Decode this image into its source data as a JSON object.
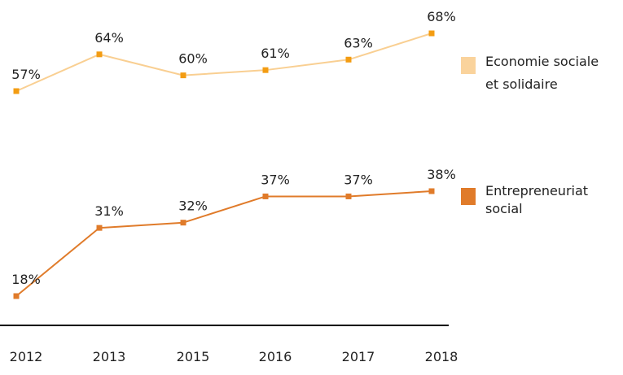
{
  "chart_data": {
    "type": "line",
    "title": "",
    "xlabel": "",
    "ylabel": "",
    "categories": [
      "2012",
      "2013",
      "2015",
      "2016",
      "2017",
      "2018"
    ],
    "series": [
      {
        "name": "Economie sociale et solidaire",
        "name_lines": [
          "Economie sociale",
          "et solidaire"
        ],
        "values": [
          57,
          64,
          60,
          61,
          63,
          68
        ],
        "labels": [
          "57%",
          "64%",
          "60%",
          "61%",
          "63%",
          "68%"
        ],
        "line_color": "#f9cf92",
        "marker_color": "#f39c12",
        "legend_color": "#fad39c"
      },
      {
        "name": "Entrepreneuriat social",
        "name_lines": [
          "Entrepreneuriat",
          "social"
        ],
        "values": [
          18,
          31,
          32,
          37,
          37,
          38
        ],
        "labels": [
          "18%",
          "31%",
          "32%",
          "37%",
          "37%",
          "38%"
        ],
        "line_color": "#e07b2a",
        "marker_color": "#e07b2a",
        "legend_color": "#e07b2a"
      }
    ],
    "axis_color": "#000000",
    "grid": false,
    "legend_position": "right",
    "unit": "%"
  }
}
